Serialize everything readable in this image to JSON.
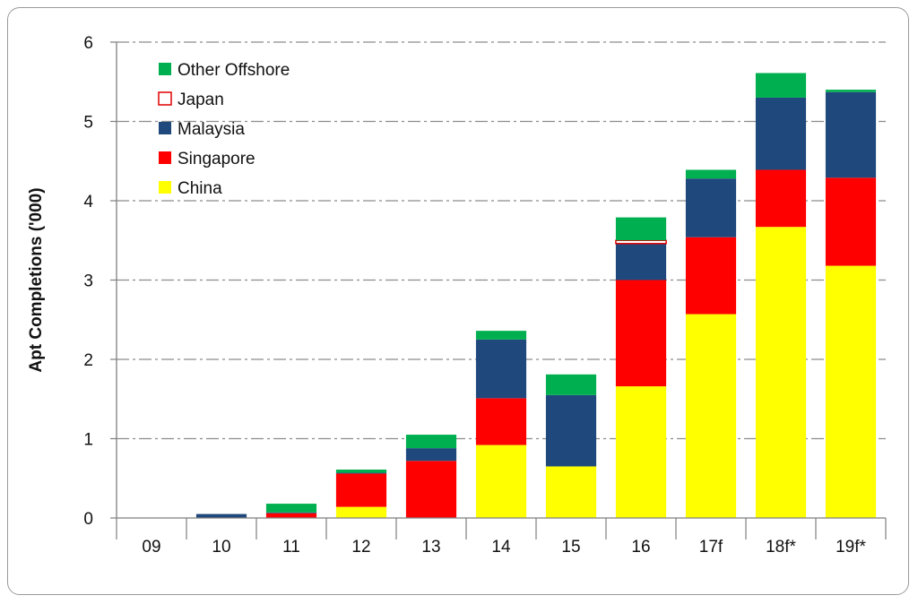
{
  "chart_data": {
    "type": "bar",
    "stacked": true,
    "ylabel": "Apt Completions ('000)",
    "xlabel": "",
    "ylim": [
      0,
      6
    ],
    "yticks": [
      0,
      1,
      2,
      3,
      4,
      5,
      6
    ],
    "grid": true,
    "legend_position": "top-left",
    "categories": [
      "09",
      "10",
      "11",
      "12",
      "13",
      "14",
      "15",
      "16",
      "17f",
      "18f*",
      "19f*"
    ],
    "series": [
      {
        "name": "China",
        "color": "#ffff00",
        "values": [
          0,
          0,
          0,
          0.14,
          0,
          0.92,
          0.65,
          1.66,
          2.57,
          3.67,
          3.18
        ]
      },
      {
        "name": "Singapore",
        "color": "#ff0000",
        "values": [
          0,
          0,
          0.06,
          0.42,
          0.72,
          0.59,
          0,
          1.34,
          0.97,
          0.72,
          1.11
        ]
      },
      {
        "name": "Malaysia",
        "color": "#1f497d",
        "values": [
          0,
          0.05,
          0.01,
          0.01,
          0.16,
          0.74,
          0.9,
          0.46,
          0.74,
          0.91,
          1.08
        ]
      },
      {
        "name": "Japan",
        "color": "#ffffff",
        "stroke": "#e00000",
        "values": [
          0,
          0,
          0,
          0,
          0,
          0,
          0,
          0.04,
          0,
          0,
          0
        ]
      },
      {
        "name": "Other Offshore",
        "color": "#00b050",
        "values": [
          0,
          0,
          0.11,
          0.04,
          0.17,
          0.11,
          0.26,
          0.29,
          0.11,
          0.31,
          0.03
        ]
      }
    ]
  }
}
